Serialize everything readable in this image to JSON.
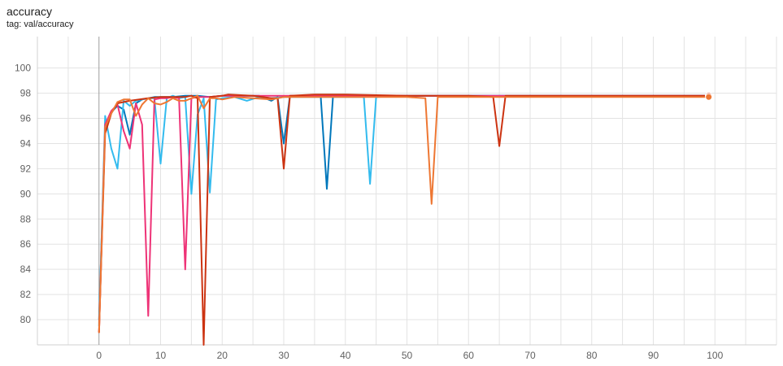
{
  "header": {
    "title": "accuracy",
    "subtitle": "tag: val/accuracy"
  },
  "chart_data": {
    "type": "line",
    "title": "accuracy",
    "subtitle": "tag: val/accuracy",
    "xlabel": "",
    "ylabel": "",
    "xlim": [
      -10,
      110
    ],
    "ylim": [
      78,
      102.5
    ],
    "xticks": [
      0,
      10,
      20,
      30,
      40,
      50,
      60,
      70,
      80,
      90,
      100
    ],
    "yticks": [
      80,
      82,
      84,
      86,
      88,
      90,
      92,
      94,
      96,
      98,
      100
    ],
    "grid": true,
    "legend": "none",
    "series": [
      {
        "color": "#0077bb",
        "x": [
          0,
          1,
          2,
          3,
          4,
          5,
          6,
          7,
          8,
          9,
          10,
          12,
          14,
          16,
          18,
          20,
          22,
          24,
          26,
          28,
          29,
          30,
          31,
          33,
          35,
          36,
          37,
          38,
          40,
          45,
          50,
          60,
          70,
          80,
          90,
          99
        ],
        "y": [
          80,
          95.3,
          96.5,
          97,
          96.7,
          94.7,
          97.2,
          97.5,
          97.6,
          97.7,
          97.7,
          97.7,
          97.8,
          97.8,
          97.7,
          97.8,
          97.8,
          97.8,
          97.8,
          97.4,
          97.7,
          94.0,
          97.8,
          97.8,
          97.8,
          97.7,
          90.4,
          97.8,
          97.8,
          97.8,
          97.8,
          97.8,
          97.8,
          97.8,
          97.8,
          97.8
        ]
      },
      {
        "color": "#33bbee",
        "x": [
          0,
          1,
          2,
          3,
          4,
          5,
          6,
          7,
          8,
          9,
          10,
          11,
          12,
          13,
          14,
          15,
          16,
          17,
          18,
          19,
          20,
          22,
          24,
          26,
          28,
          30,
          35,
          40,
          43,
          44,
          45,
          50,
          60,
          70,
          80,
          90,
          99
        ],
        "y": [
          79.5,
          96.2,
          93.6,
          92.0,
          97.4,
          97.0,
          97.4,
          97.5,
          97.6,
          97.6,
          92.4,
          97.6,
          97.8,
          97.6,
          97.7,
          90.0,
          96.3,
          97.6,
          90.1,
          97.5,
          97.6,
          97.7,
          97.4,
          97.7,
          97.6,
          97.7,
          97.7,
          97.7,
          97.7,
          90.8,
          97.7,
          97.8,
          97.8,
          97.8,
          97.8,
          97.8,
          97.8
        ]
      },
      {
        "color": "#ee3377",
        "x": [
          0,
          1,
          2,
          3,
          4,
          5,
          6,
          7,
          8,
          9,
          10,
          11,
          12,
          13,
          14,
          15,
          16,
          18,
          20,
          25,
          30,
          40,
          50,
          60,
          70,
          80,
          90,
          99
        ],
        "y": [
          79,
          95.5,
          96.6,
          97.1,
          95.0,
          93.6,
          97.2,
          95.5,
          80.3,
          97.5,
          97.6,
          97.6,
          97.7,
          97.6,
          84.0,
          97.6,
          97.7,
          97.7,
          97.8,
          97.8,
          97.8,
          97.8,
          97.8,
          97.8,
          97.8,
          97.8,
          97.8,
          97.8
        ]
      },
      {
        "color": "#cc3311",
        "x": [
          0,
          1,
          2,
          3,
          5,
          8,
          10,
          14,
          15,
          16,
          17,
          18,
          20,
          21,
          25,
          28,
          29,
          30,
          31,
          35,
          40,
          50,
          60,
          64,
          65,
          66,
          70,
          80,
          90,
          99
        ],
        "y": [
          79,
          94.8,
          96.4,
          97.2,
          97.4,
          97.6,
          97.7,
          97.7,
          97.8,
          97.6,
          78.0,
          97.7,
          97.8,
          97.9,
          97.8,
          97.6,
          97.6,
          92.0,
          97.8,
          97.9,
          97.9,
          97.8,
          97.8,
          97.7,
          93.8,
          97.8,
          97.8,
          97.8,
          97.8,
          97.8
        ]
      },
      {
        "color": "#ee7733",
        "x": [
          0,
          1,
          2,
          3,
          4,
          5,
          6,
          7,
          8,
          9,
          10,
          11,
          12,
          13,
          14,
          15,
          16,
          17,
          18,
          19,
          20,
          22,
          25,
          28,
          30,
          35,
          40,
          45,
          50,
          53,
          54,
          55,
          60,
          70,
          80,
          90,
          99
        ],
        "y": [
          79,
          95.3,
          96.4,
          97.3,
          97.5,
          97.5,
          96.2,
          97.1,
          97.6,
          97.2,
          97.1,
          97.3,
          97.6,
          97.4,
          97.4,
          97.6,
          97.8,
          96.8,
          97.6,
          97.6,
          97.5,
          97.7,
          97.6,
          97.5,
          97.7,
          97.7,
          97.7,
          97.7,
          97.7,
          97.6,
          89.2,
          97.7,
          97.7,
          97.7,
          97.7,
          97.7,
          97.7
        ]
      }
    ]
  }
}
